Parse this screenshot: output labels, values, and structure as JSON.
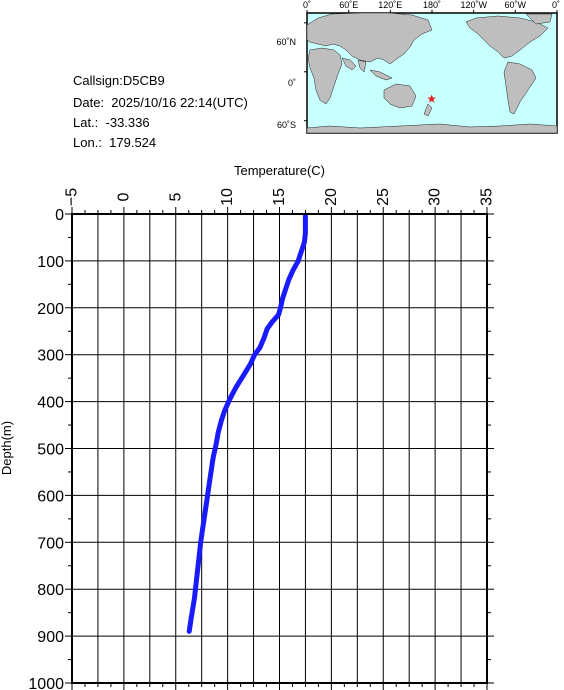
{
  "station": {
    "callsign": "Callsign:D5CB9",
    "date": "Date:  2025/10/16 22:14(UTC)",
    "lat": "Lat.:  -33.336",
    "lon": "Lon.:  179.524"
  },
  "map": {
    "top_ticks": [
      "0˚",
      "60˚E",
      "120˚E",
      "180˚",
      "120˚W",
      "60˚W",
      "0˚"
    ],
    "lat_ticks": [
      "60˚N",
      "0˚",
      "60˚S"
    ],
    "marker": {
      "lon": 179.524,
      "lat": -33.336,
      "color": "#e8231c"
    },
    "ocean_color": "#c8ffff",
    "land_color": "#bebebe"
  },
  "chart_data": {
    "type": "line",
    "xlabel": "Temperature(C)",
    "ylabel": "Depth(m)",
    "xlim": [
      -5,
      35
    ],
    "ylim": [
      0,
      1000
    ],
    "y_inverted": true,
    "x_axis_position": "top",
    "xticks": [
      "-5",
      "0",
      "5",
      "10",
      "15",
      "20",
      "25",
      "30",
      "35"
    ],
    "yticks": [
      "0",
      "100",
      "200",
      "300",
      "400",
      "500",
      "600",
      "700",
      "800",
      "900",
      "1000"
    ],
    "grid": true,
    "series": [
      {
        "color": "#1a1aff",
        "points": [
          [
            17.5,
            5
          ],
          [
            17.5,
            20
          ],
          [
            17.5,
            40
          ],
          [
            17.4,
            60
          ],
          [
            17.1,
            80
          ],
          [
            16.8,
            100
          ],
          [
            16.3,
            120
          ],
          [
            15.9,
            140
          ],
          [
            15.6,
            160
          ],
          [
            15.3,
            180
          ],
          [
            15.1,
            200
          ],
          [
            14.9,
            215
          ],
          [
            14.3,
            230
          ],
          [
            13.8,
            245
          ],
          [
            13.5,
            265
          ],
          [
            13.1,
            285
          ],
          [
            12.6,
            300
          ],
          [
            12.2,
            320
          ],
          [
            11.5,
            345
          ],
          [
            10.8,
            370
          ],
          [
            10.2,
            395
          ],
          [
            9.7,
            420
          ],
          [
            9.4,
            440
          ],
          [
            9.1,
            465
          ],
          [
            8.9,
            490
          ],
          [
            8.6,
            520
          ],
          [
            8.4,
            550
          ],
          [
            8.2,
            580
          ],
          [
            8.0,
            610
          ],
          [
            7.8,
            640
          ],
          [
            7.6,
            670
          ],
          [
            7.4,
            700
          ],
          [
            7.2,
            740
          ],
          [
            7.0,
            780
          ],
          [
            6.8,
            820
          ],
          [
            6.5,
            860
          ],
          [
            6.3,
            890
          ]
        ]
      }
    ]
  }
}
